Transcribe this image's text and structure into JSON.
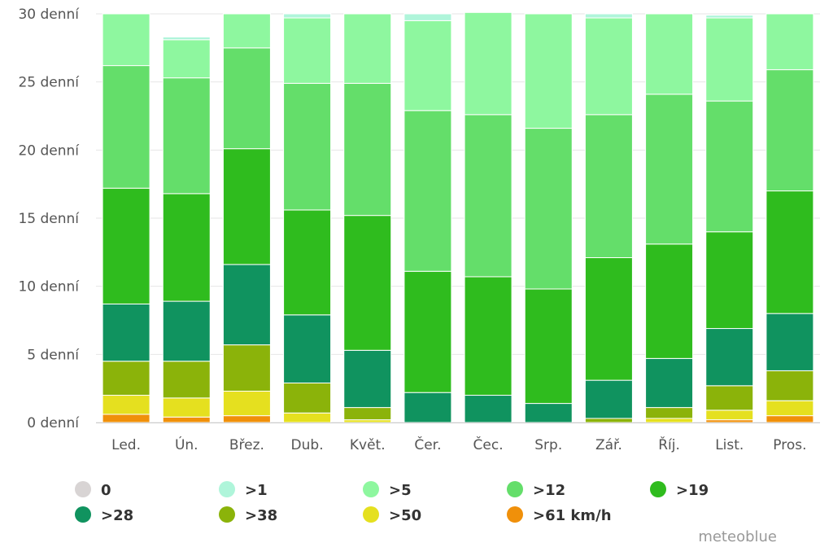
{
  "chart_data": {
    "type": "bar",
    "stacked": true,
    "categories": [
      "Led.",
      "Ún.",
      "Břez.",
      "Dub.",
      "Květ.",
      "Čer.",
      "Čec.",
      "Srp.",
      "Zář.",
      "Říj.",
      "List.",
      "Pros."
    ],
    "y_unit": "denní",
    "yticks": [
      0,
      5,
      10,
      15,
      20,
      25,
      30
    ],
    "ylim": [
      0,
      30
    ],
    "legend_position": "bottom",
    "grid": "horizontal",
    "series": [
      {
        "name": ">61 km/h",
        "color": "#f0900a",
        "values": [
          0.6,
          0.4,
          0.5,
          0.0,
          0.0,
          0.0,
          0.0,
          0.0,
          0.0,
          0.0,
          0.2,
          0.5
        ]
      },
      {
        "name": ">50",
        "color": "#e5e01f",
        "values": [
          1.4,
          1.4,
          1.8,
          0.7,
          0.2,
          0.0,
          0.0,
          0.0,
          0.0,
          0.3,
          0.7,
          1.1
        ]
      },
      {
        "name": ">38",
        "color": "#8bb30a",
        "values": [
          2.5,
          2.7,
          3.4,
          2.2,
          0.9,
          0.0,
          0.0,
          0.0,
          0.3,
          0.8,
          1.8,
          2.2
        ]
      },
      {
        "name": ">28",
        "color": "#10935f",
        "values": [
          4.2,
          4.4,
          5.9,
          5.0,
          4.2,
          2.2,
          2.0,
          1.4,
          2.8,
          3.6,
          4.2,
          4.2
        ]
      },
      {
        "name": ">19",
        "color": "#2fbc1e",
        "values": [
          8.5,
          7.9,
          8.5,
          7.7,
          9.9,
          8.9,
          8.7,
          8.4,
          9.0,
          8.4,
          7.1,
          9.0
        ]
      },
      {
        "name": ">12",
        "color": "#64de6a",
        "values": [
          9.0,
          8.5,
          7.4,
          9.3,
          9.7,
          11.8,
          11.9,
          11.8,
          10.5,
          11.0,
          9.6,
          8.9
        ]
      },
      {
        "name": ">5",
        "color": "#8ef79f",
        "values": [
          3.8,
          2.8,
          2.5,
          4.8,
          5.1,
          6.6,
          7.5,
          8.4,
          7.1,
          5.9,
          6.1,
          4.1
        ]
      },
      {
        "name": ">1",
        "color": "#aff5da",
        "values": [
          0.0,
          0.2,
          0.0,
          0.3,
          0.0,
          0.5,
          0.0,
          0.0,
          0.3,
          0.0,
          0.2,
          0.0
        ]
      },
      {
        "name": "0",
        "color": "#d8d4d4",
        "values": [
          0,
          0,
          0,
          0,
          0,
          0,
          0,
          0,
          0,
          0,
          0,
          0
        ]
      }
    ]
  },
  "legend": {
    "items": [
      {
        "label": "0",
        "color": "#d8d4d4"
      },
      {
        "label": ">1",
        "color": "#aff5da"
      },
      {
        "label": ">5",
        "color": "#8ef79f"
      },
      {
        "label": ">12",
        "color": "#64de6a"
      },
      {
        "label": ">19",
        "color": "#2fbc1e"
      },
      {
        "label": ">28",
        "color": "#10935f"
      },
      {
        "label": ">38",
        "color": "#8bb30a"
      },
      {
        "label": ">50",
        "color": "#e5e01f"
      },
      {
        "label": ">61 km/h",
        "color": "#f0900a"
      }
    ]
  },
  "credit": "meteoblue"
}
